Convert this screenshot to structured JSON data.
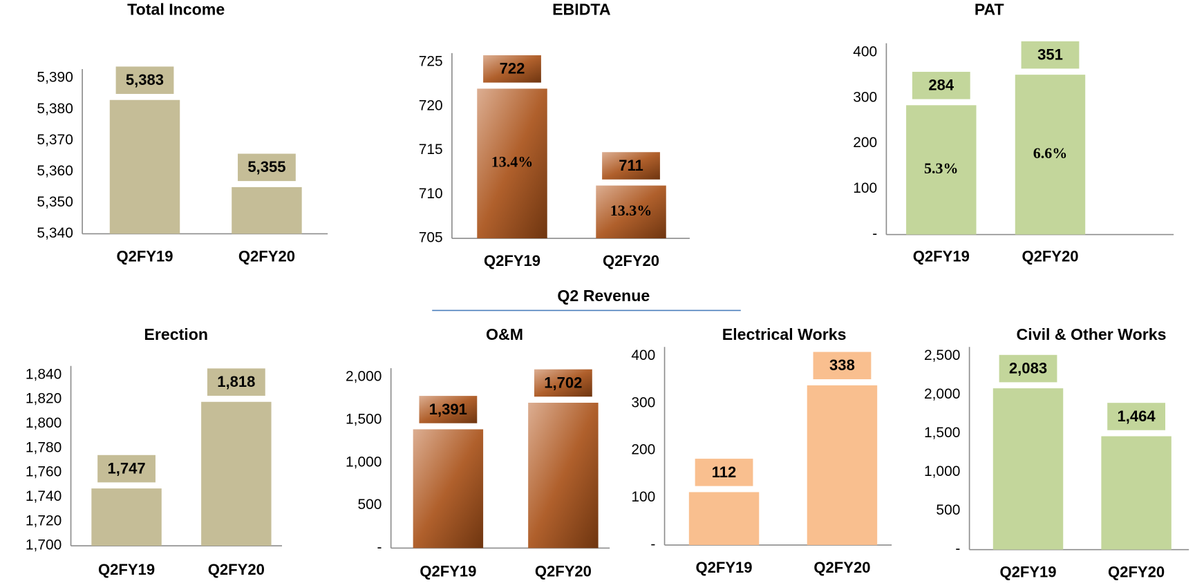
{
  "section_title": "Q2 Revenue",
  "chart_data": [
    {
      "type": "bar",
      "title": "Total Income",
      "categories": [
        "Q2FY19",
        "Q2FY20"
      ],
      "values": [
        5383,
        5355
      ],
      "value_labels": [
        "5,383",
        "5,355"
      ],
      "color": "#c5bd97",
      "ylim": [
        5340,
        5390
      ],
      "yticks": [
        {
          "value": 5340,
          "label": "5,340"
        },
        {
          "value": 5350,
          "label": "5,350"
        },
        {
          "value": 5360,
          "label": "5,360"
        },
        {
          "value": 5370,
          "label": "5,370"
        },
        {
          "value": 5380,
          "label": "5,380"
        },
        {
          "value": 5390,
          "label": "5,390"
        }
      ]
    },
    {
      "type": "bar",
      "title": "EBIDTA",
      "categories": [
        "Q2FY19",
        "Q2FY20"
      ],
      "values": [
        722,
        711
      ],
      "inner_labels": [
        "13.4%",
        "13.3%"
      ],
      "color": "#b5652e",
      "gradient": [
        "#dcae92",
        "#b0602c",
        "#6e3510"
      ],
      "ylim": [
        705,
        725
      ],
      "yticks": [
        705,
        710,
        715,
        720,
        725
      ]
    },
    {
      "type": "bar",
      "title": "PAT",
      "categories": [
        "Q2FY19",
        "Q2FY20"
      ],
      "values": [
        284,
        351
      ],
      "inner_labels": [
        "5.3%",
        "6.6%"
      ],
      "color": "#c3d69b",
      "ylim": [
        0,
        400
      ],
      "yticks": [
        {
          "value": 0,
          "label": "-"
        },
        100,
        200,
        300,
        400
      ]
    },
    {
      "type": "bar",
      "title": "Erection",
      "categories": [
        "Q2FY19",
        "Q2FY20"
      ],
      "values": [
        1747,
        1818
      ],
      "value_labels": [
        "1,747",
        "1,818"
      ],
      "color": "#c5bd97",
      "ylim": [
        1700,
        1840
      ],
      "yticks": [
        {
          "value": 1700,
          "label": "1,700"
        },
        {
          "value": 1720,
          "label": "1,720"
        },
        {
          "value": 1740,
          "label": "1,740"
        },
        {
          "value": 1760,
          "label": "1,760"
        },
        {
          "value": 1780,
          "label": "1,780"
        },
        {
          "value": 1800,
          "label": "1,800"
        },
        {
          "value": 1820,
          "label": "1,820"
        },
        {
          "value": 1840,
          "label": "1,840"
        }
      ]
    },
    {
      "type": "bar",
      "title": "O&M",
      "categories": [
        "Q2FY19",
        "Q2FY20"
      ],
      "values": [
        1391,
        1702
      ],
      "value_labels": [
        "1,391",
        "1,702"
      ],
      "color": "#b5652e",
      "gradient": [
        "#dcae92",
        "#b0602c",
        "#6e3510"
      ],
      "ylim": [
        0,
        2000
      ],
      "yticks": [
        {
          "value": 0,
          "label": "-"
        },
        500,
        {
          "value": 1000,
          "label": "1,000"
        },
        {
          "value": 1500,
          "label": "1,500"
        },
        {
          "value": 2000,
          "label": "2,000"
        }
      ]
    },
    {
      "type": "bar",
      "title": "Electrical Works",
      "categories": [
        "Q2FY19",
        "Q2FY20"
      ],
      "values": [
        112,
        338
      ],
      "color": "#f9bf8f",
      "ylim": [
        0,
        400
      ],
      "yticks": [
        {
          "value": 0,
          "label": "-"
        },
        100,
        200,
        300,
        400
      ]
    },
    {
      "type": "bar",
      "title": "Civil  & Other Works",
      "categories": [
        "Q2FY19",
        "Q2FY20"
      ],
      "values": [
        2083,
        1464
      ],
      "value_labels": [
        "2,083",
        "1,464"
      ],
      "color": "#c3d69b",
      "ylim": [
        0,
        2500
      ],
      "yticks": [
        {
          "value": 0,
          "label": "-"
        },
        500,
        {
          "value": 1000,
          "label": "1,000"
        },
        {
          "value": 1500,
          "label": "1,500"
        },
        {
          "value": 2000,
          "label": "2,000"
        },
        {
          "value": 2500,
          "label": "2,500"
        }
      ]
    }
  ]
}
